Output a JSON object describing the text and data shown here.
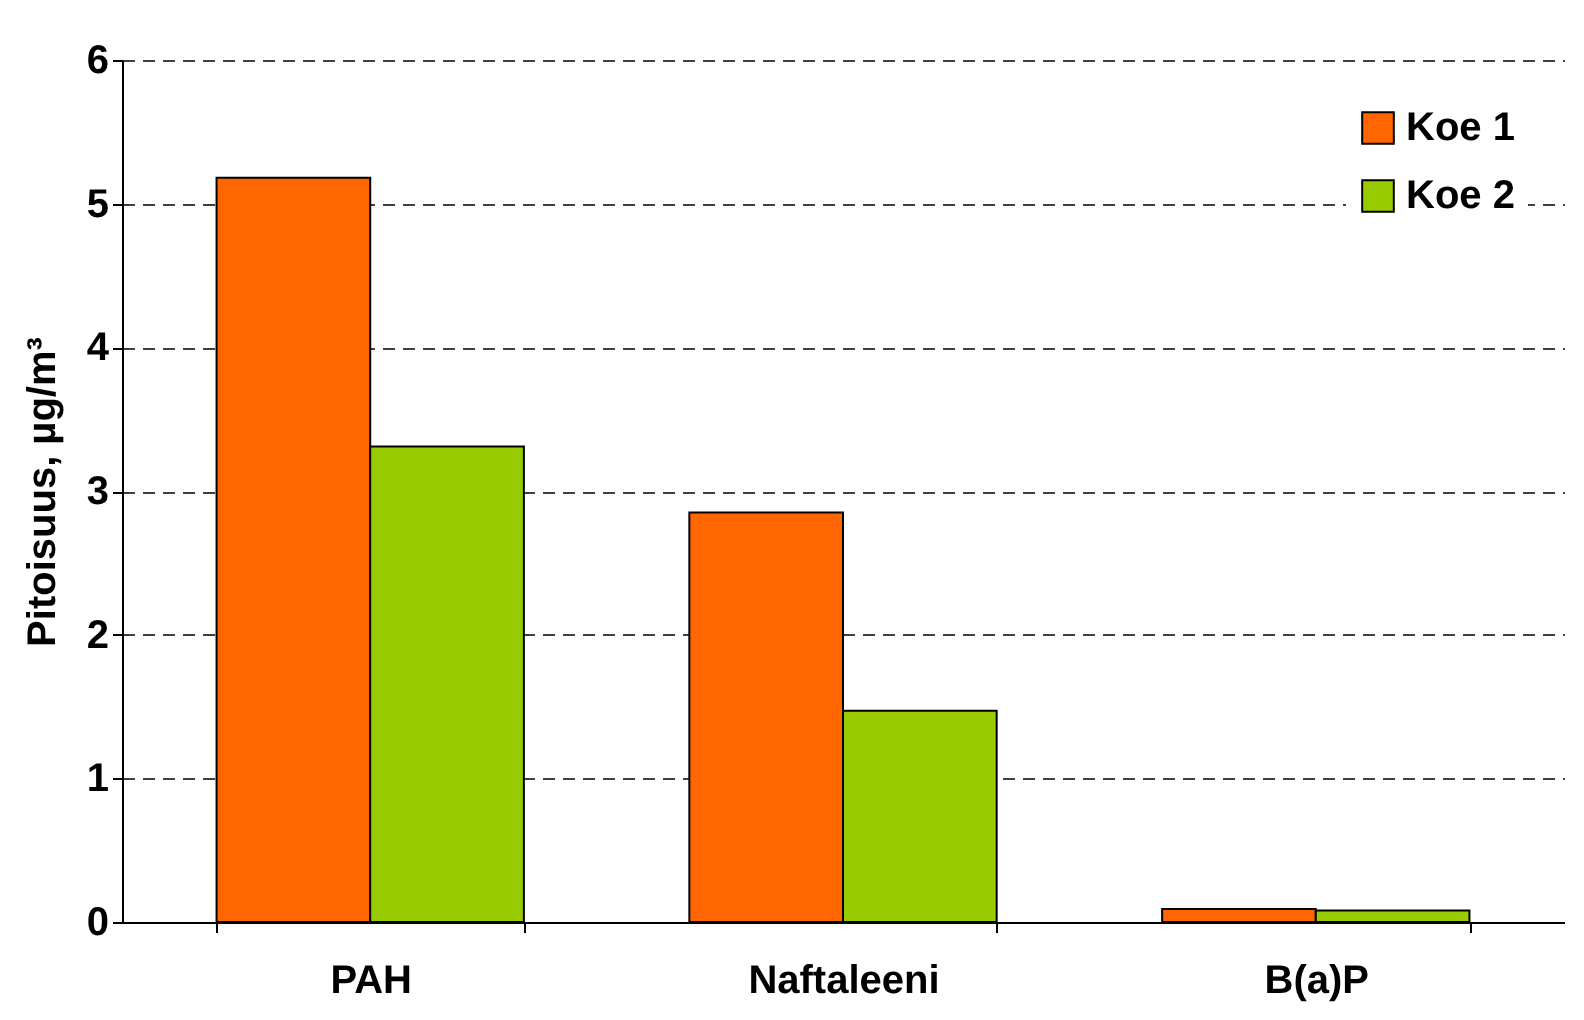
{
  "chart_data": {
    "type": "bar",
    "ylabel": "Pitoisuus, µg/m³",
    "categories": [
      "PAH",
      "Naftaleeni",
      "B(a)P"
    ],
    "series": [
      {
        "name": "Koe 1",
        "color": "#ff6600",
        "values": [
          5.18,
          2.85,
          0.09
        ]
      },
      {
        "name": "Koe 2",
        "color": "#99cc00",
        "values": [
          3.31,
          1.47,
          0.08
        ]
      }
    ],
    "ylim": [
      0,
      6
    ],
    "yticks": [
      0,
      1,
      2,
      3,
      4,
      5,
      6
    ],
    "grid": "y",
    "legend": "top right"
  }
}
